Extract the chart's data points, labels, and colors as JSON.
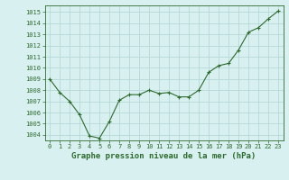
{
  "x": [
    0,
    1,
    2,
    3,
    4,
    5,
    6,
    7,
    8,
    9,
    10,
    11,
    12,
    13,
    14,
    15,
    16,
    17,
    18,
    19,
    20,
    21,
    22,
    23
  ],
  "y": [
    1009.0,
    1007.8,
    1007.0,
    1005.8,
    1003.9,
    1003.7,
    1005.2,
    1007.1,
    1007.6,
    1007.6,
    1008.0,
    1007.7,
    1007.8,
    1007.4,
    1007.4,
    1008.0,
    1009.6,
    1010.2,
    1010.4,
    1011.6,
    1013.2,
    1013.6,
    1014.4,
    1015.1
  ],
  "line_color": "#2d6a2d",
  "marker_color": "#2d6a2d",
  "bg_color": "#d8f0f0",
  "grid_color": "#b0d4d4",
  "xlabel": "Graphe pression niveau de la mer (hPa)",
  "ylabel_ticks": [
    1004,
    1005,
    1006,
    1007,
    1008,
    1009,
    1010,
    1011,
    1012,
    1013,
    1014,
    1015
  ],
  "ylim": [
    1003.5,
    1015.6
  ],
  "xlim": [
    -0.5,
    23.5
  ],
  "xtick_labels": [
    "0",
    "1",
    "2",
    "3",
    "4",
    "5",
    "6",
    "7",
    "8",
    "9",
    "10",
    "11",
    "12",
    "13",
    "14",
    "15",
    "16",
    "17",
    "18",
    "19",
    "20",
    "21",
    "22",
    "23"
  ],
  "xlabel_fontsize": 6.5,
  "tick_fontsize": 5.0,
  "marker_size": 2.5,
  "line_width": 0.8
}
